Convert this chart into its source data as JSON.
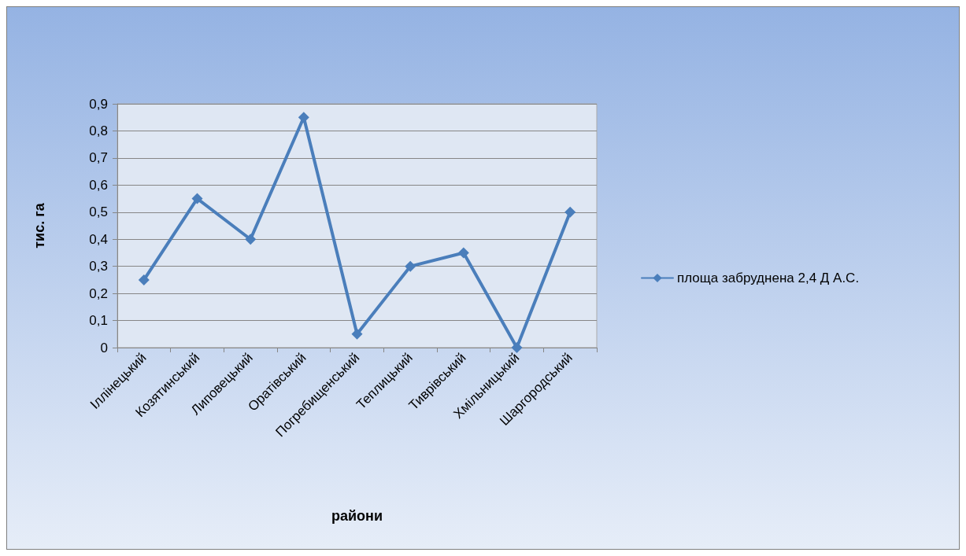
{
  "chart_data": {
    "type": "line",
    "xlabel": "райони",
    "ylabel": "тис. га",
    "categories": [
      "Іллінецький",
      "Козятинський",
      "Липовецький",
      "Оратівський",
      "Погребищенський",
      "Теплицький",
      "Тиврівський",
      "Хмільницький",
      "Шаргородський"
    ],
    "series": [
      {
        "name": "площа забруднена 2,4 Д А.С.",
        "color": "#4a7ebb",
        "values": [
          0.25,
          0.55,
          0.4,
          0.85,
          0.05,
          0.3,
          0.35,
          0,
          0.5
        ]
      }
    ],
    "ylim": [
      0,
      0.9
    ],
    "yticks": [
      0,
      {
        "value": 0.1,
        "label": "0,1"
      },
      {
        "value": 0.2,
        "label": "0,2"
      },
      {
        "value": 0.3,
        "label": "0,3"
      },
      {
        "value": 0.4,
        "label": "0,4"
      },
      {
        "value": 0.5,
        "label": "0,5"
      },
      {
        "value": 0.6,
        "label": "0,6"
      },
      {
        "value": 0.7,
        "label": "0,7"
      },
      {
        "value": 0.8,
        "label": "0,8"
      },
      {
        "value": 0.9,
        "label": "0,9"
      }
    ],
    "grid": "y",
    "legend": "right",
    "marker": "diamond",
    "line_style": "solid"
  }
}
